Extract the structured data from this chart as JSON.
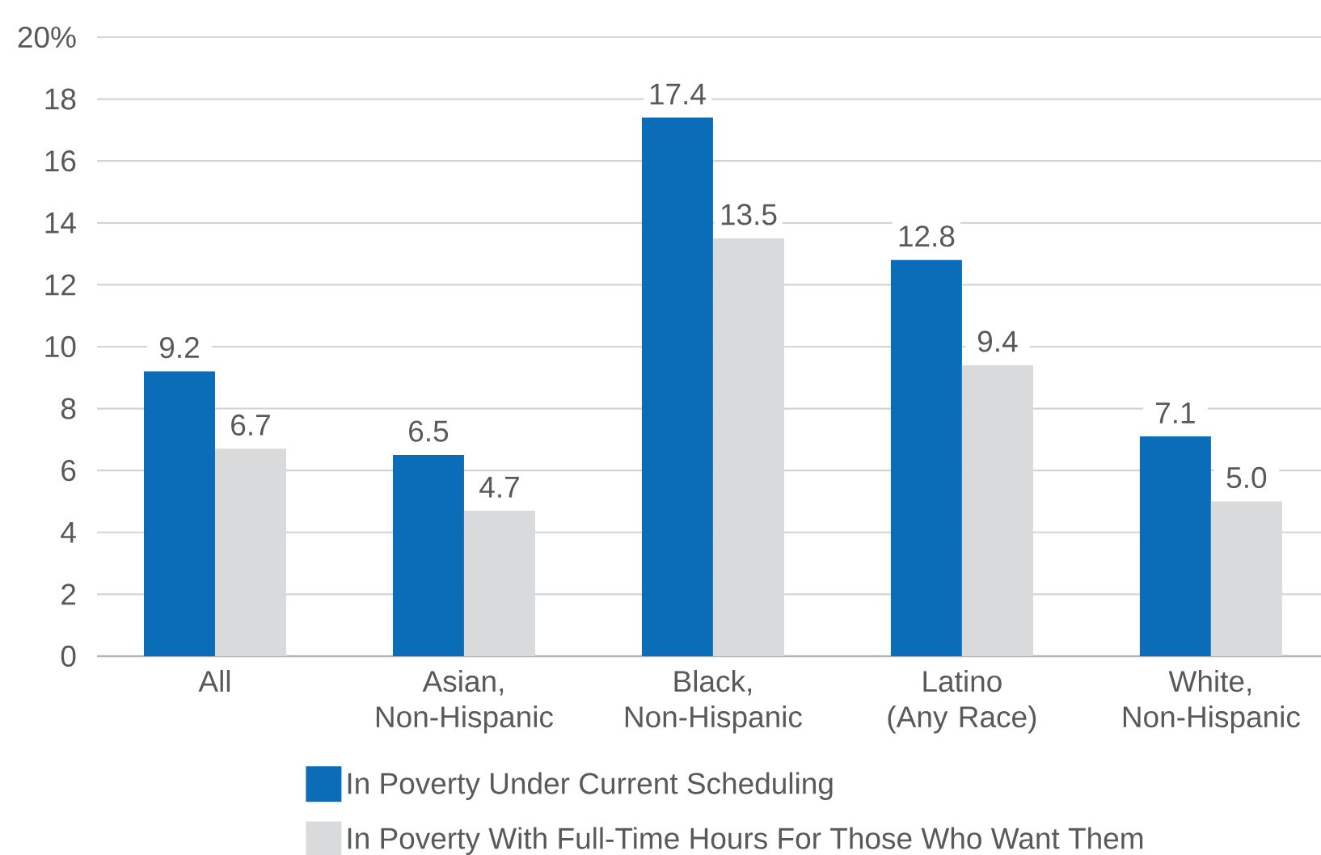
{
  "chart_data": {
    "type": "bar",
    "categories": [
      "All",
      "Asian,\nNon-Hispanic",
      "Black,\nNon-Hispanic",
      "Latino\n(Any Race)",
      "White,\nNon-Hispanic"
    ],
    "series": [
      {
        "name": "In Poverty Under Current Scheduling",
        "color": "#0b6cb8",
        "values": [
          9.2,
          6.5,
          17.4,
          12.8,
          7.1
        ],
        "value_labels": [
          "9.2",
          "6.5",
          "17.4",
          "12.8",
          "7.1"
        ]
      },
      {
        "name": "In Poverty With Full-Time Hours For Those Who Want Them",
        "color": "#d9dadc",
        "values": [
          6.7,
          4.7,
          13.5,
          9.4,
          5.0
        ],
        "value_labels": [
          "6.7",
          "4.7",
          "13.5",
          "9.4",
          "5.0"
        ]
      }
    ],
    "ylim": [
      0,
      20
    ],
    "yticks": [
      0,
      2,
      4,
      6,
      8,
      10,
      12,
      14,
      16,
      18,
      {
        "value": 20,
        "label": "20%"
      }
    ],
    "grid": "y",
    "legend": "bottom"
  }
}
